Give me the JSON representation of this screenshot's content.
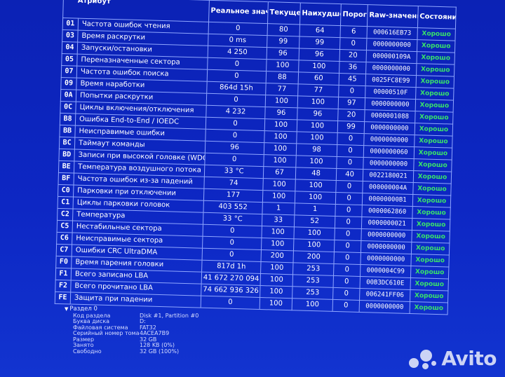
{
  "table": {
    "headers": {
      "attribute": "Атрибут",
      "real_value": "Реальное значение",
      "current": "Текущее",
      "worst": "Наихудшее",
      "threshold": "Порог",
      "raw": "Raw-значение",
      "status": "Состояние"
    },
    "rows": [
      {
        "id": "01",
        "name": "Частота ошибок чтения",
        "real": "0",
        "cur": "80",
        "worst": "64",
        "thr": "6",
        "raw": "000616EB73",
        "status": "Хорошо"
      },
      {
        "id": "03",
        "name": "Время раскрутки",
        "real": "0 ms",
        "cur": "99",
        "worst": "99",
        "thr": "0",
        "raw": "0000000000",
        "status": "Хорошо"
      },
      {
        "id": "04",
        "name": "Запуски/остановки",
        "real": "4 250",
        "cur": "96",
        "worst": "96",
        "thr": "20",
        "raw": "000000109A",
        "status": "Хорошо"
      },
      {
        "id": "05",
        "name": "Переназначенные сектора",
        "real": "0",
        "cur": "100",
        "worst": "100",
        "thr": "36",
        "raw": "0000000000",
        "status": "Хорошо"
      },
      {
        "id": "07",
        "name": "Частота ошибок поиска",
        "real": "0",
        "cur": "88",
        "worst": "60",
        "thr": "45",
        "raw": "0025FC8E99",
        "status": "Хорошо"
      },
      {
        "id": "09",
        "name": "Время наработки",
        "real": "864d 15h",
        "cur": "77",
        "worst": "77",
        "thr": "0",
        "raw": "00000510F",
        "status": "Хорошо"
      },
      {
        "id": "0A",
        "name": "Попытки раскрутки",
        "real": "0",
        "cur": "100",
        "worst": "100",
        "thr": "97",
        "raw": "0000000000",
        "status": "Хорошо"
      },
      {
        "id": "0C",
        "name": "Циклы включения/отключения",
        "real": "4 232",
        "cur": "96",
        "worst": "96",
        "thr": "20",
        "raw": "0000001088",
        "status": "Хорошо"
      },
      {
        "id": "B8",
        "name": "Ошибка End-to-End / IOEDC",
        "real": "0",
        "cur": "100",
        "worst": "100",
        "thr": "99",
        "raw": "0000000000",
        "status": "Хорошо"
      },
      {
        "id": "BB",
        "name": "Неисправимые ошибки",
        "real": "0",
        "cur": "100",
        "worst": "100",
        "thr": "0",
        "raw": "0000000000",
        "status": "Хорошо"
      },
      {
        "id": "BC",
        "name": "Таймаут команды",
        "real": "96",
        "cur": "100",
        "worst": "98",
        "thr": "0",
        "raw": "0000000060",
        "status": "Хорошо"
      },
      {
        "id": "BD",
        "name": "Записи при высокой головке (WDC)",
        "real": "0",
        "cur": "100",
        "worst": "100",
        "thr": "0",
        "raw": "0000000000",
        "status": "Хорошо"
      },
      {
        "id": "BE",
        "name": "Температура воздушного потока",
        "real": "33 °C",
        "cur": "67",
        "worst": "48",
        "thr": "40",
        "raw": "0022180021",
        "status": "Хорошо"
      },
      {
        "id": "BF",
        "name": "Частота ошибок из-за падений",
        "real": "74",
        "cur": "100",
        "worst": "100",
        "thr": "0",
        "raw": "000000004A",
        "status": "Хорошо"
      },
      {
        "id": "C0",
        "name": "Парковки при отключении",
        "real": "177",
        "cur": "100",
        "worst": "100",
        "thr": "0",
        "raw": "00000000B1",
        "status": "Хорошо"
      },
      {
        "id": "C1",
        "name": "Циклы парковки головок",
        "real": "403 552",
        "cur": "1",
        "worst": "1",
        "thr": "0",
        "raw": "0000062860",
        "status": "Хорошо"
      },
      {
        "id": "C2",
        "name": "Температура",
        "real": "33 °C",
        "cur": "33",
        "worst": "52",
        "thr": "0",
        "raw": "0000000021",
        "status": "Хорошо"
      },
      {
        "id": "C5",
        "name": "Нестабильные сектора",
        "real": "0",
        "cur": "100",
        "worst": "100",
        "thr": "0",
        "raw": "0000000000",
        "status": "Хорошо"
      },
      {
        "id": "C6",
        "name": "Неисправимые сектора",
        "real": "0",
        "cur": "100",
        "worst": "100",
        "thr": "0",
        "raw": "0000000000",
        "status": "Хорошо"
      },
      {
        "id": "C7",
        "name": "Ошибки CRC UltraDMA",
        "real": "0",
        "cur": "200",
        "worst": "200",
        "thr": "0",
        "raw": "0000000000",
        "status": "Хорошо"
      },
      {
        "id": "F0",
        "name": "Время парения головки",
        "real": "817d 1h",
        "cur": "100",
        "worst": "253",
        "thr": "0",
        "raw": "0000004C99",
        "status": "Хорошо"
      },
      {
        "id": "F1",
        "name": "Всего записано LBA",
        "real": "41 672 270 094",
        "cur": "100",
        "worst": "253",
        "thr": "0",
        "raw": "00B3DC610E",
        "status": "Хорошо"
      },
      {
        "id": "F2",
        "name": "Всего прочитано LBA",
        "real": "74 662 936 326",
        "cur": "100",
        "worst": "253",
        "thr": "0",
        "raw": "006241FF06",
        "status": "Хорошо"
      },
      {
        "id": "FE",
        "name": "Защита при падении",
        "real": "0",
        "cur": "100",
        "worst": "100",
        "thr": "0",
        "raw": "0000000000",
        "status": "Хорошо"
      }
    ]
  },
  "partition": {
    "title": "Раздел 0",
    "fields": [
      {
        "label": "Код раздела",
        "value": "Disk #1, Partition #0"
      },
      {
        "label": "Буква диска",
        "value": "D:"
      },
      {
        "label": "Файловая система",
        "value": "FAT32"
      },
      {
        "label": "Серийный номер тома",
        "value": "4ACEA7B9"
      },
      {
        "label": "Размер",
        "value": "32 GB"
      },
      {
        "label": "Занято",
        "value": "128 KB (0%)"
      },
      {
        "label": "Свободно",
        "value": "32 GB (100%)"
      }
    ]
  },
  "watermark": {
    "text": "Avito",
    "icon": "avito-logo-icon"
  }
}
